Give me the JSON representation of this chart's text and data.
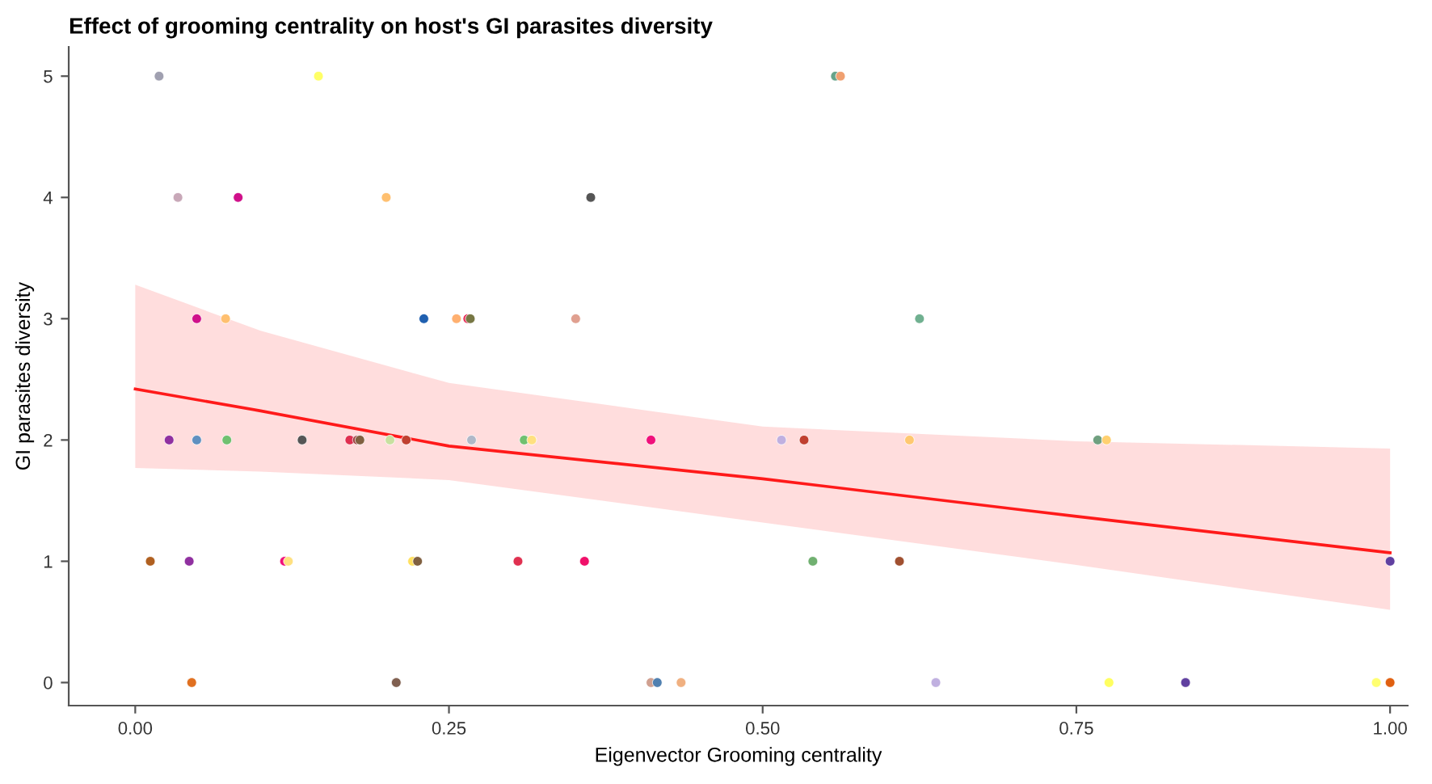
{
  "chart_data": {
    "type": "scatter",
    "title": "Effect of grooming centrality on host's GI parasites diversity",
    "xlabel": "Eigenvector Grooming centrality",
    "ylabel": "GI parasites diversity",
    "xlim": [
      -0.053,
      1.014
    ],
    "ylim": [
      -0.19,
      5.24
    ],
    "xticks": [
      {
        "value": 0,
        "label": "0.00"
      },
      {
        "value": 0.25,
        "label": "0.25"
      },
      {
        "value": 0.5,
        "label": "0.50"
      },
      {
        "value": 0.75,
        "label": "0.75"
      },
      {
        "value": 1,
        "label": "1.00"
      }
    ],
    "yticks": [
      0,
      1,
      2,
      3,
      4,
      5
    ],
    "grid": false,
    "legend": false,
    "series": [
      {
        "marker": "circle",
        "x": [
          0.019,
          0.146,
          0.558,
          0.562,
          0.034,
          0.082,
          0.2,
          0.363,
          0.049,
          0.072,
          0.23,
          0.256,
          0.265,
          0.267,
          0.351,
          0.625,
          0.027,
          0.049,
          0.073,
          0.133,
          0.171,
          0.177,
          0.179,
          0.203,
          0.216,
          0.268,
          0.31,
          0.316,
          0.411,
          0.515,
          0.533,
          0.617,
          0.767,
          0.774,
          0.012,
          0.043,
          0.119,
          0.122,
          0.221,
          0.225,
          0.305,
          0.358,
          0.54,
          0.609,
          1.0,
          0.045,
          0.208,
          0.411,
          0.416,
          0.435,
          0.638,
          0.776,
          0.837,
          0.989,
          1.0
        ],
        "values": [
          5,
          5,
          5,
          5,
          4,
          4,
          4,
          4,
          3,
          3,
          3,
          3,
          3,
          3,
          3,
          3,
          2,
          2,
          2,
          2,
          2,
          2,
          2,
          2,
          2,
          2,
          2,
          2,
          2,
          2,
          2,
          2,
          2,
          2,
          1,
          1,
          1,
          1,
          1,
          1,
          1,
          1,
          1,
          1,
          1,
          0,
          0,
          0,
          0,
          0,
          0,
          0,
          0,
          0,
          0
        ],
        "colors": [
          "#a0a0b0",
          "#ffff66",
          "#66a38a",
          "#f0a070",
          "#c8a8b8",
          "#d0108a",
          "#ffc070",
          "#555555",
          "#d0108a",
          "#ffc070",
          "#2060b0",
          "#ffb070",
          "#e8305a",
          "#777744",
          "#e0a090",
          "#70b090",
          "#9030a0",
          "#6090c0",
          "#70c070",
          "#555555",
          "#e03050",
          "#a04040",
          "#806040",
          "#c8e0a0",
          "#c04030",
          "#b0b8c8",
          "#70c070",
          "#ffe080",
          "#f0107a",
          "#c0b0e0",
          "#c04030",
          "#ffc870",
          "#70a080",
          "#ffd070",
          "#b06020",
          "#9030a0",
          "#f0107a",
          "#ffe080",
          "#ffe060",
          "#806040",
          "#e03050",
          "#f0106a",
          "#70b070",
          "#a05030",
          "#6040a0",
          "#e07020",
          "#806050",
          "#d0a090",
          "#5080b0",
          "#f0b080",
          "#c0b0e0",
          "#ffff60",
          "#6040a0",
          "#ffff70",
          "#e06010"
        ]
      },
      {
        "type": "line",
        "marker": "none",
        "color": "#ff1a1a",
        "x": [
          0,
          0.1,
          0.25,
          0.5,
          0.75,
          1
        ],
        "values": [
          2.42,
          2.24,
          1.95,
          1.68,
          1.37,
          1.07
        ],
        "lower": [
          1.77,
          1.74,
          1.67,
          1.32,
          0.97,
          0.6
        ],
        "upper": [
          3.28,
          2.9,
          2.47,
          2.11,
          1.99,
          1.93
        ]
      }
    ]
  }
}
